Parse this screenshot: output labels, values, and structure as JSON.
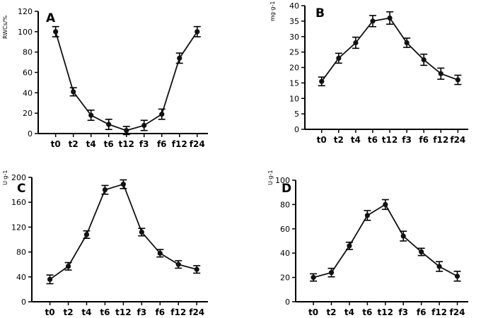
{
  "chart_data": [
    {
      "type": "line",
      "panel": "A",
      "title": "",
      "xlabel": "",
      "ylabel": "RWCs/%",
      "categories": [
        "t0",
        "t2",
        "t4",
        "t6",
        "t12",
        "f3",
        "f6",
        "f12",
        "f24"
      ],
      "values": [
        100,
        41,
        18,
        9,
        3,
        8,
        19,
        74,
        100
      ],
      "errors": [
        5,
        4,
        5,
        5,
        4,
        5,
        5,
        5,
        5
      ],
      "ylim": [
        0,
        120
      ],
      "yticks": [
        0,
        20,
        40,
        60,
        80,
        100,
        120
      ],
      "ytick_labels": [
        "0",
        "20",
        "40",
        "60",
        "80",
        "100",
        "120"
      ],
      "grid": false,
      "colors": {
        "line": "#111111",
        "marker": "#111111"
      }
    },
    {
      "type": "line",
      "panel": "B",
      "title": "",
      "xlabel": "",
      "ylabel": "mg·g-1",
      "categories": [
        "t0",
        "t2",
        "t4",
        "t6",
        "t12",
        "f3",
        "f6",
        "f12",
        "f24"
      ],
      "values": [
        15.5,
        23,
        28,
        35,
        36,
        28,
        22.5,
        18,
        16
      ],
      "errors": [
        1.4,
        1.6,
        1.8,
        1.8,
        2.0,
        1.5,
        1.8,
        1.8,
        1.5
      ],
      "ylim": [
        0,
        40
      ],
      "yticks": [
        0,
        5,
        10,
        15,
        20,
        25,
        30,
        35,
        40
      ],
      "ytick_labels": [
        "0",
        "5",
        "10",
        "15",
        "20",
        "25",
        "30",
        "35",
        "40"
      ],
      "grid": false,
      "colors": {
        "line": "#111111",
        "marker": "#111111"
      }
    },
    {
      "type": "line",
      "panel": "C",
      "title": "",
      "xlabel": "",
      "ylabel": "U·g-1",
      "categories": [
        "t0",
        "t2",
        "t4",
        "t6",
        "t12",
        "f3",
        "f6",
        "f12",
        "f24"
      ],
      "values": [
        36,
        57,
        108,
        180,
        189,
        112,
        78,
        60,
        52
      ],
      "errors": [
        7,
        6,
        6,
        7,
        7,
        6,
        6,
        6,
        6
      ],
      "ylim": [
        0,
        200
      ],
      "yticks": [
        0,
        40,
        80,
        120,
        160,
        200
      ],
      "ytick_labels": [
        "0",
        "40",
        "80",
        "120",
        "160",
        "200"
      ],
      "grid": false,
      "colors": {
        "line": "#111111",
        "marker": "#111111"
      }
    },
    {
      "type": "line",
      "panel": "D",
      "title": "",
      "xlabel": "",
      "ylabel": "U·g-1",
      "categories": [
        "t0",
        "t2",
        "t4",
        "t6",
        "t12",
        "f3",
        "f6",
        "f12",
        "f24"
      ],
      "values": [
        20,
        24,
        46,
        71,
        80,
        54,
        41,
        29,
        21
      ],
      "errors": [
        3,
        3.5,
        3,
        4,
        4,
        4,
        3,
        4,
        4
      ],
      "ylim": [
        0,
        100
      ],
      "yticks": [
        0,
        20,
        40,
        60,
        80,
        100
      ],
      "ytick_labels": [
        "0",
        "20",
        "40",
        "60",
        "80",
        "100"
      ],
      "grid": false,
      "colors": {
        "line": "#111111",
        "marker": "#111111"
      }
    }
  ]
}
